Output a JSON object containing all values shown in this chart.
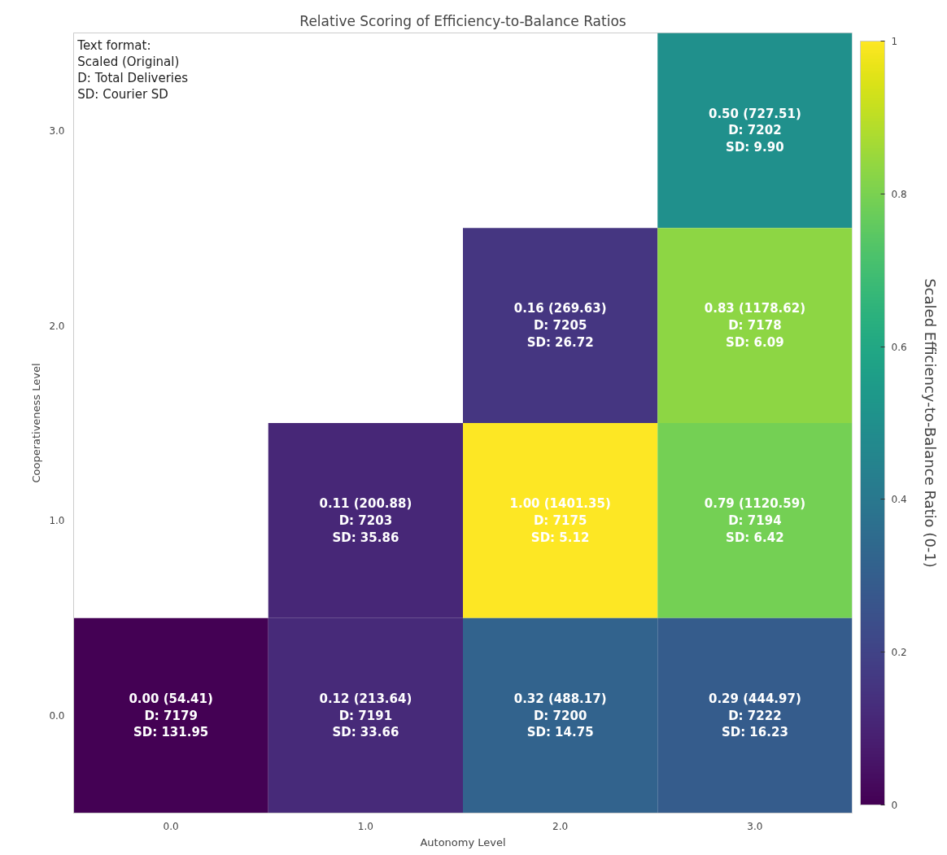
{
  "chart_data": {
    "type": "heatmap",
    "title": "Relative Scoring of Efficiency-to-Balance Ratios",
    "xlabel": "Autonomy Level",
    "ylabel": "Cooperativeness Level",
    "clabel": "Scaled Efficiency-to-Balance Ratio (0-1)",
    "categories": [
      "0.0",
      "1.0",
      "2.0",
      "3.0"
    ],
    "y_categories": [
      "3.0",
      "2.0",
      "1.0",
      "0.0"
    ],
    "cells": [
      [
        null,
        null,
        null,
        0.5
      ],
      [
        null,
        null,
        0.16,
        0.83
      ],
      [
        null,
        0.11,
        1.0,
        0.79
      ],
      [
        0.0,
        0.12,
        0.32,
        0.29
      ]
    ],
    "cell_labels": [
      [
        null,
        null,
        null,
        "0.50 (727.51)\nD: 7202\nSD: 9.90"
      ],
      [
        null,
        null,
        "0.16 (269.63)\nD: 7205\nSD: 26.72",
        "0.83 (1178.62)\nD: 7178\nSD: 6.09"
      ],
      [
        null,
        "0.11 (200.88)\nD: 7203\nSD: 35.86",
        "1.00 (1401.35)\nD: 7175\nSD: 5.12",
        "0.79 (1120.59)\nD: 7194\nSD: 6.42"
      ],
      [
        "0.00 (54.41)\nD: 7179\nSD: 131.95",
        "0.12 (213.64)\nD: 7191\nSD: 33.66",
        "0.32 (488.17)\nD: 7200\nSD: 14.75",
        "0.29 (444.97)\nD: 7222\nSD: 16.23"
      ]
    ],
    "clim": [
      0,
      1
    ],
    "cticks": [
      0.0,
      0.2,
      0.4,
      0.6,
      0.8,
      1.0
    ],
    "annotations": [
      "Text format:\nScaled (Original)\nD: Total Deliveries\nSD: Courier SD"
    ],
    "grid": false
  }
}
